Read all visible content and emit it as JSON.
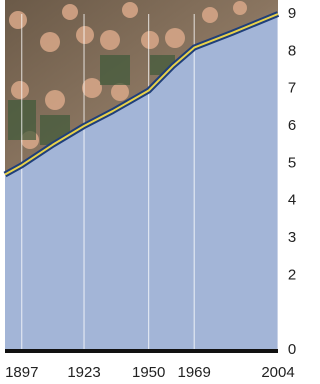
{
  "chart_data": {
    "type": "area",
    "x": [
      1890,
      1897,
      1910,
      1923,
      1935,
      1950,
      1960,
      1969,
      1985,
      2004
    ],
    "values": [
      4.7,
      4.95,
      5.5,
      6.0,
      6.4,
      6.95,
      7.6,
      8.1,
      8.5,
      9.0
    ],
    "color": "#a3b5d7",
    "line_color": "#e8d24a",
    "xlim": [
      1890,
      2004
    ],
    "xticks": [
      1897,
      1923,
      1950,
      1969,
      2004
    ],
    "ylim": [
      0,
      9
    ],
    "yticks": [
      0,
      2,
      3,
      4,
      5,
      6,
      7,
      8,
      9
    ],
    "grid": true
  }
}
